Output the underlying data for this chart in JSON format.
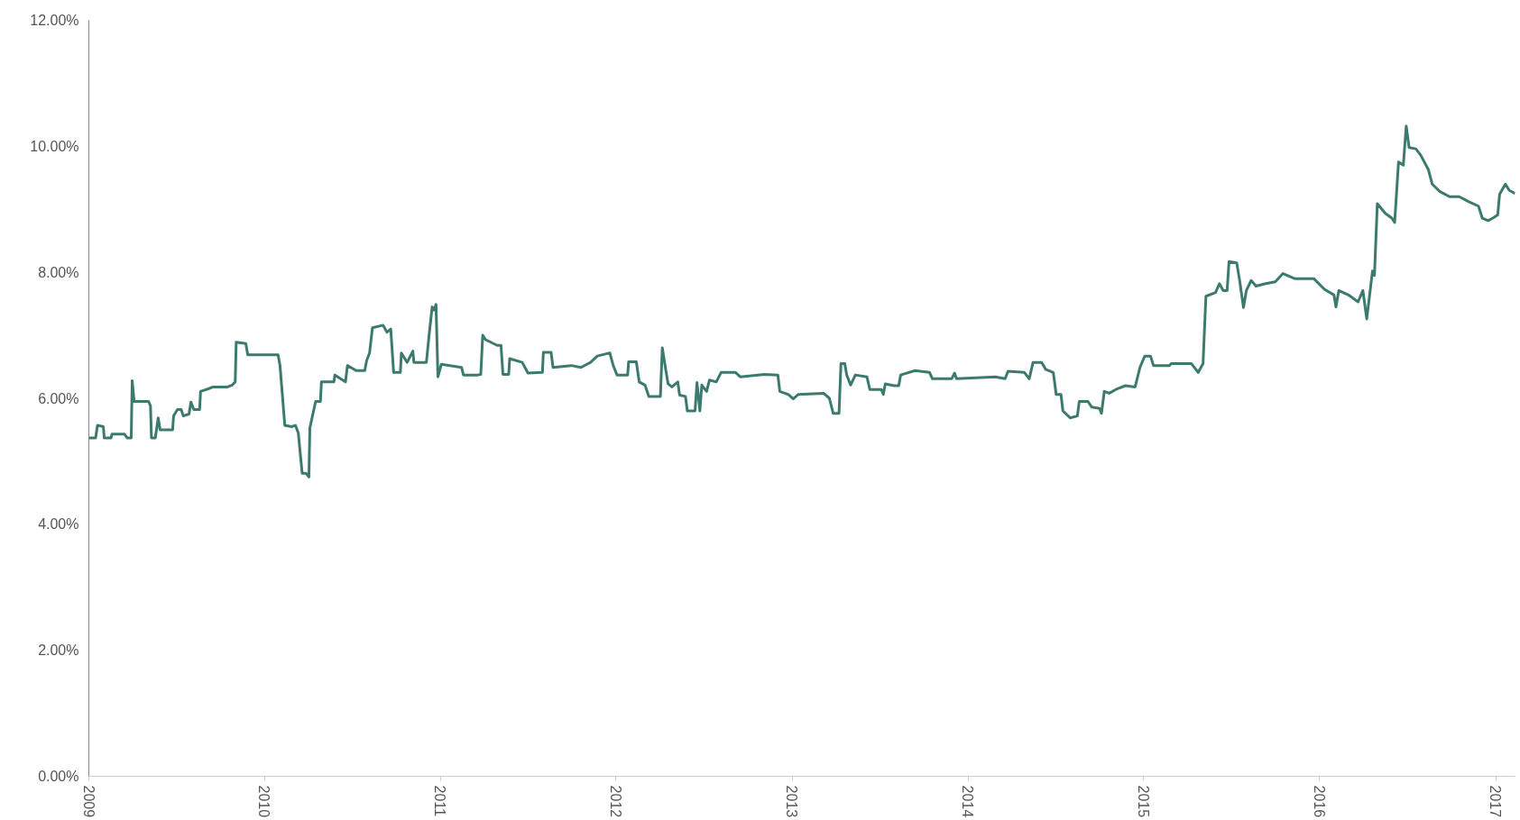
{
  "chart_data": {
    "type": "line",
    "grid": false,
    "marker": "none",
    "line_style": "solid",
    "xlim": [
      "2009-01-01",
      "2017-02-10"
    ],
    "xticks": [
      {
        "value": "2009",
        "label": "2009"
      },
      {
        "value": "2010",
        "label": "2010"
      },
      {
        "value": "2011",
        "label": "2011"
      },
      {
        "value": "2012",
        "label": "2012"
      },
      {
        "value": "2013",
        "label": "2013"
      },
      {
        "value": "2014",
        "label": "2014"
      },
      {
        "value": "2015",
        "label": "2015"
      },
      {
        "value": "2016",
        "label": "2016"
      },
      {
        "value": "2017",
        "label": "2017"
      }
    ],
    "ylim": [
      0,
      12
    ],
    "yticks": [
      {
        "value": 0,
        "label": "0.00%"
      },
      {
        "value": 2,
        "label": "2.00%"
      },
      {
        "value": 4,
        "label": "4.00%"
      },
      {
        "value": 6,
        "label": "6.00%"
      },
      {
        "value": 8,
        "label": "8.00%"
      },
      {
        "value": 10,
        "label": "10.00%"
      },
      {
        "value": 12,
        "label": "12.00%"
      }
    ],
    "x": [
      "2009-01-01",
      "2009-01-15",
      "2009-01-19",
      "2009-01-31",
      "2009-02-02",
      "2009-02-16",
      "2009-02-18",
      "2009-03-16",
      "2009-03-22",
      "2009-03-30",
      "2009-04-01",
      "2009-04-05",
      "2009-05-05",
      "2009-05-09",
      "2009-05-11",
      "2009-05-19",
      "2009-05-25",
      "2009-05-29",
      "2009-06-24",
      "2009-06-26",
      "2009-07-04",
      "2009-07-12",
      "2009-07-16",
      "2009-07-28",
      "2009-08-01",
      "2009-08-07",
      "2009-08-19",
      "2009-08-21",
      "2009-09-06",
      "2009-09-16",
      "2009-10-16",
      "2009-10-26",
      "2009-11-01",
      "2009-11-03",
      "2009-11-23",
      "2009-11-27",
      "2010-01-29",
      "2010-02-02",
      "2010-02-12",
      "2010-02-26",
      "2010-03-06",
      "2010-03-12",
      "2010-03-20",
      "2010-03-28",
      "2010-04-03",
      "2010-04-05",
      "2010-04-17",
      "2010-04-27",
      "2010-04-29",
      "2010-05-25",
      "2010-05-27",
      "2010-06-18",
      "2010-06-22",
      "2010-07-10",
      "2010-07-28",
      "2010-08-01",
      "2010-08-07",
      "2010-08-13",
      "2010-09-04",
      "2010-09-12",
      "2010-09-20",
      "2010-09-26",
      "2010-10-10",
      "2010-10-12",
      "2010-10-24",
      "2010-11-05",
      "2010-11-07",
      "2010-12-03",
      "2010-12-09",
      "2010-12-15",
      "2010-12-19",
      "2010-12-23",
      "2010-12-27",
      "2011-01-03",
      "2011-02-14",
      "2011-02-18",
      "2011-03-20",
      "2011-03-26",
      "2011-03-30",
      "2011-04-05",
      "2011-04-29",
      "2011-05-07",
      "2011-05-11",
      "2011-05-23",
      "2011-05-25",
      "2011-06-20",
      "2011-07-02",
      "2011-08-01",
      "2011-08-03",
      "2011-08-19",
      "2011-08-23",
      "2011-09-30",
      "2011-10-20",
      "2011-11-09",
      "2011-11-23",
      "2011-12-19",
      "2011-12-26",
      "2012-01-03",
      "2012-01-25",
      "2012-01-27",
      "2012-02-12",
      "2012-02-18",
      "2012-03-01",
      "2012-03-09",
      "2012-04-02",
      "2012-04-06",
      "2012-04-14",
      "2012-04-18",
      "2012-04-26",
      "2012-05-08",
      "2012-05-12",
      "2012-05-24",
      "2012-05-28",
      "2012-06-13",
      "2012-06-17",
      "2012-06-23",
      "2012-06-27",
      "2012-07-07",
      "2012-07-13",
      "2012-07-27",
      "2012-08-06",
      "2012-09-05",
      "2012-09-15",
      "2012-11-04",
      "2012-12-02",
      "2012-12-06",
      "2012-12-24",
      "2013-01-03",
      "2013-01-13",
      "2013-03-07",
      "2013-03-19",
      "2013-03-27",
      "2013-04-08",
      "2013-04-12",
      "2013-04-20",
      "2013-04-24",
      "2013-05-02",
      "2013-05-12",
      "2013-06-05",
      "2013-06-11",
      "2013-07-05",
      "2013-07-09",
      "2013-07-13",
      "2013-07-31",
      "2013-08-10",
      "2013-08-14",
      "2013-09-13",
      "2013-10-13",
      "2013-10-19",
      "2013-11-28",
      "2013-12-04",
      "2013-12-08",
      "2014-02-27",
      "2014-03-19",
      "2014-03-25",
      "2014-04-28",
      "2014-05-08",
      "2014-05-16",
      "2014-06-03",
      "2014-06-11",
      "2014-06-27",
      "2014-07-03",
      "2014-07-13",
      "2014-07-17",
      "2014-08-01",
      "2014-08-16",
      "2014-08-20",
      "2014-09-07",
      "2014-09-15",
      "2014-10-01",
      "2014-10-05",
      "2014-10-11",
      "2014-10-21",
      "2014-11-04",
      "2014-11-24",
      "2014-12-14",
      "2014-12-24",
      "2015-01-03",
      "2015-01-15",
      "2015-01-21",
      "2015-02-23",
      "2015-02-27",
      "2015-04-10",
      "2015-04-24",
      "2015-05-04",
      "2015-05-10",
      "2015-05-30",
      "2015-06-07",
      "2015-06-15",
      "2015-06-23",
      "2015-06-27",
      "2015-07-13",
      "2015-07-19",
      "2015-07-27",
      "2015-08-02",
      "2015-08-12",
      "2015-08-22",
      "2015-09-11",
      "2015-10-01",
      "2015-10-17",
      "2015-11-10",
      "2015-12-20",
      "2016-01-11",
      "2016-01-31",
      "2016-02-04",
      "2016-02-10",
      "2016-03-01",
      "2016-03-21",
      "2016-03-31",
      "2016-04-08",
      "2016-04-20",
      "2016-04-24",
      "2016-04-30",
      "2016-05-16",
      "2016-05-30",
      "2016-06-05",
      "2016-06-13",
      "2016-06-23",
      "2016-06-29",
      "2016-07-05",
      "2016-07-19",
      "2016-07-29",
      "2016-08-14",
      "2016-08-22",
      "2016-09-07",
      "2016-09-27",
      "2016-10-17",
      "2016-11-06",
      "2016-11-26",
      "2016-12-04",
      "2016-12-16",
      "2016-12-26",
      "2017-01-05",
      "2017-01-09",
      "2017-01-21",
      "2017-01-29",
      "2017-02-10"
    ],
    "series": [
      {
        "color": "#3d7a6e",
        "values": [
          5.37,
          5.37,
          5.57,
          5.55,
          5.37,
          5.37,
          5.43,
          5.43,
          5.37,
          5.37,
          6.28,
          5.95,
          5.95,
          5.88,
          5.37,
          5.37,
          5.69,
          5.5,
          5.5,
          5.72,
          5.82,
          5.82,
          5.72,
          5.75,
          5.94,
          5.82,
          5.82,
          6.11,
          6.15,
          6.18,
          6.18,
          6.21,
          6.26,
          6.89,
          6.87,
          6.69,
          6.69,
          6.52,
          5.57,
          5.55,
          5.57,
          5.45,
          4.81,
          4.81,
          4.75,
          5.53,
          5.95,
          5.95,
          6.26,
          6.26,
          6.37,
          6.26,
          6.52,
          6.44,
          6.44,
          6.6,
          6.72,
          7.12,
          7.16,
          7.05,
          7.1,
          6.41,
          6.41,
          6.72,
          6.57,
          6.75,
          6.57,
          6.57,
          7.03,
          7.45,
          7.4,
          7.49,
          6.34,
          6.54,
          6.49,
          6.37,
          6.37,
          6.38,
          7.0,
          6.93,
          6.84,
          6.84,
          6.38,
          6.38,
          6.63,
          6.57,
          6.4,
          6.41,
          6.73,
          6.73,
          6.49,
          6.52,
          6.49,
          6.57,
          6.67,
          6.72,
          6.52,
          6.37,
          6.37,
          6.58,
          6.58,
          6.26,
          6.21,
          6.03,
          6.03,
          6.8,
          6.41,
          6.23,
          6.18,
          6.26,
          6.05,
          6.03,
          5.8,
          5.8,
          6.25,
          5.8,
          6.21,
          6.11,
          6.29,
          6.26,
          6.41,
          6.41,
          6.34,
          6.38,
          6.37,
          6.11,
          6.06,
          5.99,
          6.06,
          6.08,
          6.0,
          5.76,
          5.76,
          6.55,
          6.55,
          6.37,
          6.21,
          6.37,
          6.34,
          6.14,
          6.14,
          6.06,
          6.23,
          6.2,
          6.2,
          6.37,
          6.44,
          6.41,
          6.31,
          6.31,
          6.4,
          6.31,
          6.34,
          6.31,
          6.43,
          6.41,
          6.31,
          6.57,
          6.57,
          6.46,
          6.41,
          6.06,
          6.06,
          5.8,
          5.69,
          5.72,
          5.95,
          5.95,
          5.86,
          5.84,
          5.76,
          6.11,
          6.08,
          6.14,
          6.2,
          6.18,
          6.49,
          6.67,
          6.67,
          6.52,
          6.52,
          6.55,
          6.55,
          6.41,
          6.55,
          7.62,
          7.68,
          7.82,
          7.71,
          7.71,
          8.17,
          8.15,
          7.87,
          7.44,
          7.71,
          7.87,
          7.78,
          7.82,
          7.85,
          7.98,
          7.9,
          7.9,
          7.73,
          7.64,
          7.45,
          7.71,
          7.64,
          7.53,
          7.71,
          7.26,
          8.02,
          7.95,
          9.09,
          8.94,
          8.86,
          8.79,
          9.75,
          9.7,
          10.32,
          9.98,
          9.96,
          9.86,
          9.63,
          9.4,
          9.28,
          9.2,
          9.2,
          9.12,
          9.05,
          8.86,
          8.82,
          8.86,
          8.91,
          9.24,
          9.4,
          9.3,
          9.25
        ]
      }
    ]
  }
}
